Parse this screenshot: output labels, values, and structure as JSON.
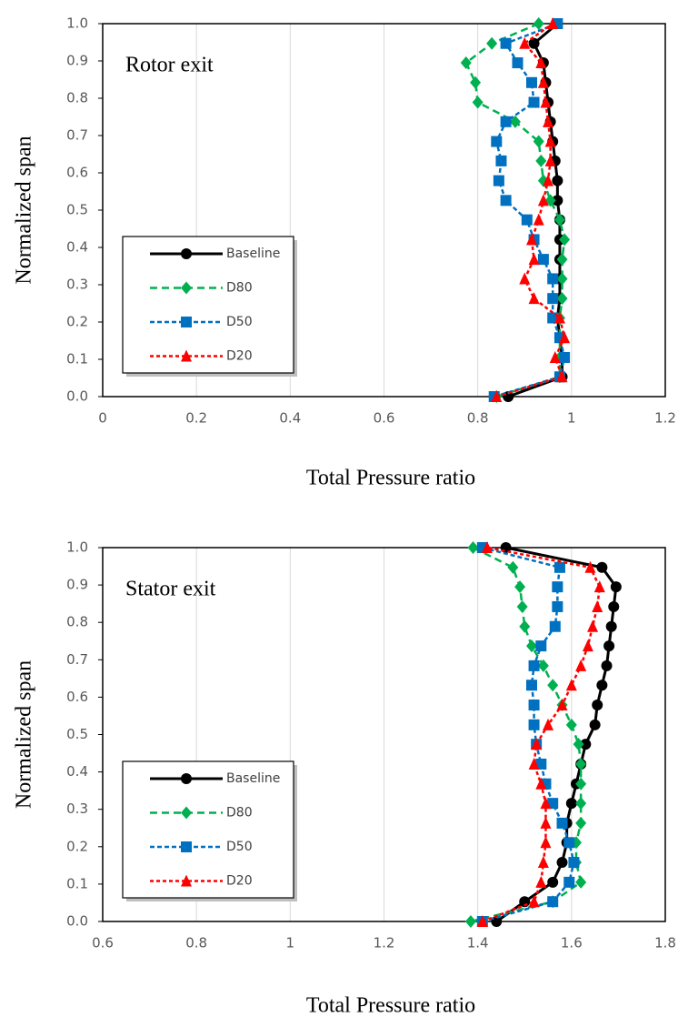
{
  "chart_data": [
    {
      "type": "line",
      "annotation": "Rotor exit",
      "xlabel": "Total Pressure ratio",
      "ylabel": "Normalized span",
      "y": [
        0,
        0.053,
        0.105,
        0.158,
        0.211,
        0.263,
        0.316,
        0.368,
        0.421,
        0.474,
        0.526,
        0.579,
        0.632,
        0.684,
        0.737,
        0.789,
        0.842,
        0.895,
        0.947,
        1.0
      ],
      "series": [
        {
          "name": "Baseline",
          "color": "#000000",
          "marker": "circle",
          "line_style": "solid",
          "x": [
            0.865,
            0.98,
            0.98,
            0.975,
            0.97,
            0.975,
            0.975,
            0.975,
            0.975,
            0.975,
            0.97,
            0.97,
            0.965,
            0.96,
            0.955,
            0.95,
            0.945,
            0.94,
            0.92,
            0.97
          ]
        },
        {
          "name": "D80",
          "color": "#00b050",
          "marker": "diamond",
          "line_style": "dashed",
          "x": [
            0.84,
            0.975,
            0.975,
            0.975,
            0.975,
            0.98,
            0.98,
            0.98,
            0.985,
            0.975,
            0.955,
            0.94,
            0.935,
            0.93,
            0.88,
            0.8,
            0.795,
            0.775,
            0.83,
            0.93
          ]
        },
        {
          "name": "D50",
          "color": "#0070c0",
          "marker": "square",
          "line_style": "dashdot",
          "x": [
            0.835,
            0.975,
            0.985,
            0.975,
            0.96,
            0.96,
            0.96,
            0.94,
            0.92,
            0.905,
            0.86,
            0.845,
            0.85,
            0.84,
            0.86,
            0.92,
            0.915,
            0.885,
            0.86,
            0.97
          ]
        },
        {
          "name": "D20",
          "color": "#ff0000",
          "marker": "triangle",
          "line_style": "dotted",
          "x": [
            0.84,
            0.98,
            0.965,
            0.985,
            0.975,
            0.92,
            0.9,
            0.92,
            0.915,
            0.93,
            0.94,
            0.95,
            0.955,
            0.955,
            0.95,
            0.945,
            0.94,
            0.935,
            0.9,
            0.96
          ]
        }
      ],
      "xlim": [
        0,
        1.2
      ],
      "ylim": [
        0,
        1.0
      ],
      "xticks": [
        0,
        0.2,
        0.4,
        0.6,
        0.8,
        1,
        1.2
      ],
      "yticks": [
        {
          "value": 0,
          "label": "0.0"
        },
        0.1,
        0.2,
        0.3,
        0.4,
        0.5,
        0.6,
        0.7,
        0.8,
        0.9,
        {
          "value": 1,
          "label": "1.0"
        }
      ],
      "grid": "x",
      "legend": "lower left"
    },
    {
      "type": "line",
      "annotation": "Stator exit",
      "xlabel": "Total Pressure ratio",
      "ylabel": "Normalized span",
      "y": [
        0,
        0.053,
        0.105,
        0.158,
        0.211,
        0.263,
        0.316,
        0.368,
        0.421,
        0.474,
        0.526,
        0.579,
        0.632,
        0.684,
        0.737,
        0.789,
        0.842,
        0.895,
        0.947,
        1.0
      ],
      "series": [
        {
          "name": "Baseline",
          "color": "#000000",
          "marker": "circle",
          "line_style": "solid",
          "x": [
            1.44,
            1.5,
            1.56,
            1.58,
            1.59,
            1.59,
            1.6,
            1.61,
            1.62,
            1.63,
            1.65,
            1.655,
            1.665,
            1.675,
            1.68,
            1.685,
            1.69,
            1.695,
            1.665,
            1.46
          ]
        },
        {
          "name": "D80",
          "color": "#00b050",
          "marker": "diamond",
          "line_style": "dashed",
          "x": [
            1.385,
            1.56,
            1.62,
            1.61,
            1.61,
            1.62,
            1.62,
            1.62,
            1.62,
            1.615,
            1.6,
            1.58,
            1.56,
            1.54,
            1.515,
            1.5,
            1.495,
            1.49,
            1.475,
            1.39
          ]
        },
        {
          "name": "D50",
          "color": "#0070c0",
          "marker": "square",
          "line_style": "dashdot",
          "x": [
            1.41,
            1.56,
            1.595,
            1.605,
            1.595,
            1.58,
            1.56,
            1.545,
            1.535,
            1.525,
            1.52,
            1.52,
            1.515,
            1.52,
            1.535,
            1.565,
            1.57,
            1.57,
            1.575,
            1.41
          ]
        },
        {
          "name": "D20",
          "color": "#ff0000",
          "marker": "triangle",
          "line_style": "dotted",
          "x": [
            1.41,
            1.52,
            1.535,
            1.54,
            1.545,
            1.545,
            1.545,
            1.535,
            1.52,
            1.525,
            1.55,
            1.58,
            1.6,
            1.62,
            1.635,
            1.645,
            1.655,
            1.66,
            1.64,
            1.42
          ]
        }
      ],
      "xlim": [
        0.6,
        1.8
      ],
      "ylim": [
        0,
        1.0
      ],
      "xticks": [
        0.6,
        0.8,
        1,
        1.2,
        1.4,
        1.6,
        1.8
      ],
      "yticks": [
        {
          "value": 0,
          "label": "0.0"
        },
        0.1,
        0.2,
        0.3,
        0.4,
        0.5,
        0.6,
        0.7,
        0.8,
        0.9,
        {
          "value": 1,
          "label": "1.0"
        }
      ],
      "grid": "x",
      "legend": "lower left"
    }
  ]
}
